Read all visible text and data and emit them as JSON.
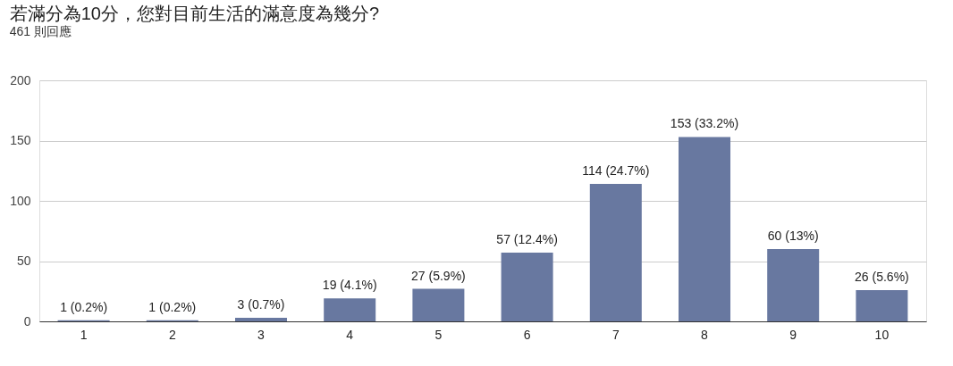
{
  "chart_data": {
    "type": "bar",
    "title": "若滿分為10分，您對目前生活的滿意度為幾分?",
    "subtitle": "461 則回應",
    "categories": [
      "1",
      "2",
      "3",
      "4",
      "5",
      "6",
      "7",
      "8",
      "9",
      "10"
    ],
    "values": [
      1,
      1,
      3,
      19,
      27,
      57,
      114,
      153,
      60,
      26
    ],
    "value_labels": [
      "1 (0.2%)",
      "1 (0.2%)",
      "3 (0.7%)",
      "19 (4.1%)",
      "27 (5.9%)",
      "57 (12.4%)",
      "114 (24.7%)",
      "153 (33.2%)",
      "60 (13%)",
      "26 (5.6%)"
    ],
    "color": "#6878a0",
    "ylim": [
      0,
      200
    ],
    "yticks": [
      0,
      50,
      100,
      150,
      200
    ],
    "grid": "y"
  }
}
